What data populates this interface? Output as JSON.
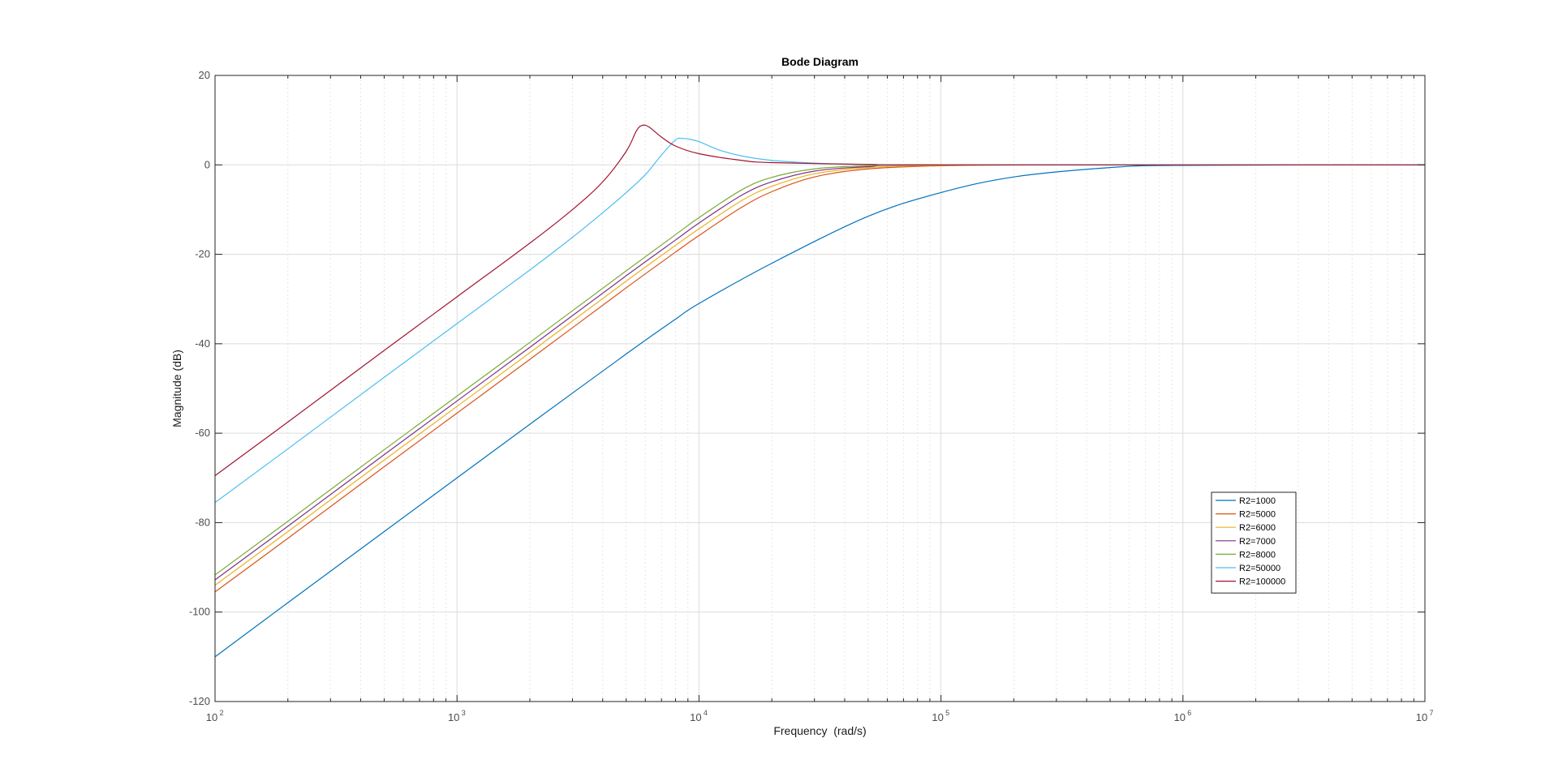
{
  "chart_data": {
    "type": "line",
    "title": "Bode Diagram",
    "xlabel": "Frequency  (rad/s)",
    "ylabel": "Magnitude (dB)",
    "x_scale": "log",
    "xlim": [
      100,
      10000000
    ],
    "ylim": [
      -120,
      20
    ],
    "x_ticks": [
      {
        "base": "10",
        "exp": "2",
        "value": 100
      },
      {
        "base": "10",
        "exp": "3",
        "value": 1000
      },
      {
        "base": "10",
        "exp": "4",
        "value": 10000
      },
      {
        "base": "10",
        "exp": "5",
        "value": 100000
      },
      {
        "base": "10",
        "exp": "6",
        "value": 1000000
      },
      {
        "base": "10",
        "exp": "7",
        "value": 10000000
      }
    ],
    "y_ticks": [
      20,
      0,
      -20,
      -40,
      -60,
      -80,
      -100,
      -120
    ],
    "grid": true,
    "legend_position": "bottom-right",
    "series": [
      {
        "name": "R2=1000",
        "color": "#0072BD",
        "points": [
          [
            100,
            -110
          ],
          [
            200,
            -97.9
          ],
          [
            500,
            -82
          ],
          [
            1000,
            -70
          ],
          [
            2000,
            -58
          ],
          [
            5000,
            -42.3
          ],
          [
            8000,
            -34.5
          ],
          [
            10000,
            -31
          ],
          [
            20000,
            -22
          ],
          [
            50000,
            -11.5
          ],
          [
            100000,
            -6.2
          ],
          [
            200000,
            -2.7
          ],
          [
            500000,
            -0.6
          ],
          [
            1000000,
            -0.1
          ],
          [
            10000000,
            0
          ]
        ]
      },
      {
        "name": "R2=5000",
        "color": "#D95319",
        "points": [
          [
            100,
            -95.5
          ],
          [
            200,
            -83.5
          ],
          [
            500,
            -67.5
          ],
          [
            1000,
            -55.5
          ],
          [
            2000,
            -43.5
          ],
          [
            5000,
            -27.5
          ],
          [
            8000,
            -19.5
          ],
          [
            10000,
            -15.8
          ],
          [
            15000,
            -9.5
          ],
          [
            20000,
            -6
          ],
          [
            30000,
            -2.7
          ],
          [
            50000,
            -0.9
          ],
          [
            100000,
            -0.2
          ],
          [
            300000,
            0
          ],
          [
            10000000,
            0
          ]
        ]
      },
      {
        "name": "R2=6000",
        "color": "#EDB120",
        "points": [
          [
            100,
            -94
          ],
          [
            200,
            -82
          ],
          [
            500,
            -66
          ],
          [
            1000,
            -54
          ],
          [
            2000,
            -42
          ],
          [
            5000,
            -26
          ],
          [
            8000,
            -18
          ],
          [
            10000,
            -14.3
          ],
          [
            15000,
            -8
          ],
          [
            20000,
            -4.8
          ],
          [
            30000,
            -2
          ],
          [
            50000,
            -0.6
          ],
          [
            100000,
            -0.1
          ],
          [
            300000,
            0
          ],
          [
            10000000,
            0
          ]
        ]
      },
      {
        "name": "R2=7000",
        "color": "#7E2F8E",
        "points": [
          [
            100,
            -92.8
          ],
          [
            200,
            -80.8
          ],
          [
            500,
            -64.8
          ],
          [
            1000,
            -52.8
          ],
          [
            2000,
            -40.8
          ],
          [
            5000,
            -24.8
          ],
          [
            8000,
            -16.8
          ],
          [
            10000,
            -13
          ],
          [
            15000,
            -6.8
          ],
          [
            20000,
            -3.8
          ],
          [
            30000,
            -1.4
          ],
          [
            50000,
            -0.4
          ],
          [
            100000,
            0
          ],
          [
            10000000,
            0
          ]
        ]
      },
      {
        "name": "R2=8000",
        "color": "#77AC30",
        "points": [
          [
            100,
            -91.7
          ],
          [
            200,
            -79.7
          ],
          [
            500,
            -63.7
          ],
          [
            1000,
            -51.7
          ],
          [
            2000,
            -39.7
          ],
          [
            5000,
            -23.7
          ],
          [
            8000,
            -15.6
          ],
          [
            10000,
            -11.8
          ],
          [
            15000,
            -5.6
          ],
          [
            20000,
            -2.8
          ],
          [
            30000,
            -0.9
          ],
          [
            50000,
            -0.2
          ],
          [
            100000,
            0
          ],
          [
            10000000,
            0
          ]
        ]
      },
      {
        "name": "R2=50000",
        "color": "#4DBEEE",
        "points": [
          [
            100,
            -75.5
          ],
          [
            200,
            -63.5
          ],
          [
            500,
            -47.5
          ],
          [
            1000,
            -35.5
          ],
          [
            2000,
            -23.5
          ],
          [
            3000,
            -16.2
          ],
          [
            4000,
            -10.7
          ],
          [
            5000,
            -6.2
          ],
          [
            6000,
            -2.2
          ],
          [
            7000,
            2.2
          ],
          [
            8000,
            5.6
          ],
          [
            8500,
            5.9
          ],
          [
            9000,
            5.8
          ],
          [
            10000,
            5.2
          ],
          [
            12000,
            3.4
          ],
          [
            15000,
            2
          ],
          [
            20000,
            1
          ],
          [
            30000,
            0.4
          ],
          [
            50000,
            0.1
          ],
          [
            100000,
            0
          ],
          [
            10000000,
            0
          ]
        ]
      },
      {
        "name": "R2=100000",
        "color": "#A2142F",
        "points": [
          [
            100,
            -69.5
          ],
          [
            200,
            -57.5
          ],
          [
            500,
            -41.5
          ],
          [
            1000,
            -29.5
          ],
          [
            2000,
            -17.5
          ],
          [
            3000,
            -10
          ],
          [
            4000,
            -3.8
          ],
          [
            5000,
            3
          ],
          [
            5500,
            7.5
          ],
          [
            5800,
            8.8
          ],
          [
            6200,
            8.5
          ],
          [
            7000,
            6.2
          ],
          [
            8000,
            4.2
          ],
          [
            10000,
            2.5
          ],
          [
            15000,
            1
          ],
          [
            20000,
            0.5
          ],
          [
            50000,
            0.1
          ],
          [
            100000,
            0
          ],
          [
            10000000,
            0
          ]
        ]
      }
    ]
  }
}
